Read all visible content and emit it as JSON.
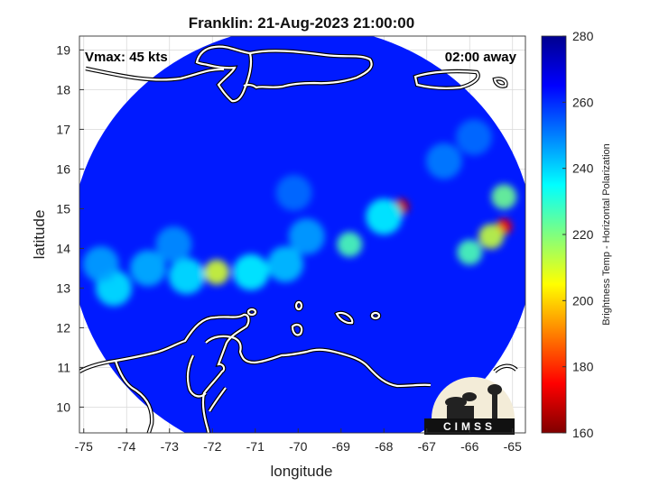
{
  "chart_data": {
    "type": "heatmap",
    "title": "Franklin: 21-Aug-2023 21:00:00",
    "xlabel": "longitude",
    "ylabel": "latitude",
    "xlim": [
      -75.1,
      -64.7
    ],
    "ylim": [
      9.35,
      19.35
    ],
    "xticks": [
      -75,
      -74,
      -73,
      -72,
      -71,
      -70,
      -69,
      -68,
      -67,
      -66,
      -65
    ],
    "yticks": [
      10,
      11,
      12,
      13,
      14,
      15,
      16,
      17,
      18,
      19
    ],
    "grid": true,
    "annotations": {
      "left": "Vmax: 45 kts",
      "right": "02:00 away"
    },
    "colorbar": {
      "label": "Brightness Temp - Horizontal Polarization",
      "range": [
        160,
        280
      ],
      "ticks": [
        160,
        180,
        200,
        220,
        240,
        260,
        280
      ],
      "colormap": "jet"
    },
    "swath": {
      "center_lon": -69.9,
      "center_lat": 14.1,
      "radius_deg": 5.4
    },
    "background_value": 262,
    "features": [
      {
        "lon": -67.6,
        "lat": 15.05,
        "value": 168
      },
      {
        "lon": -65.2,
        "lat": 14.55,
        "value": 174
      },
      {
        "lon": -65.5,
        "lat": 14.3,
        "value": 212
      },
      {
        "lon": -66.0,
        "lat": 13.9,
        "value": 226
      },
      {
        "lon": -65.2,
        "lat": 15.3,
        "value": 222
      },
      {
        "lon": -68.0,
        "lat": 14.8,
        "value": 236
      },
      {
        "lon": -69.8,
        "lat": 14.3,
        "value": 246
      },
      {
        "lon": -70.3,
        "lat": 13.6,
        "value": 242
      },
      {
        "lon": -68.8,
        "lat": 14.1,
        "value": 226
      },
      {
        "lon": -71.9,
        "lat": 13.4,
        "value": 210
      },
      {
        "lon": -72.6,
        "lat": 13.3,
        "value": 238
      },
      {
        "lon": -73.5,
        "lat": 13.5,
        "value": 244
      },
      {
        "lon": -74.3,
        "lat": 13.0,
        "value": 238
      },
      {
        "lon": -74.6,
        "lat": 13.6,
        "value": 246
      },
      {
        "lon": -71.1,
        "lat": 13.4,
        "value": 236
      },
      {
        "lon": -72.9,
        "lat": 14.1,
        "value": 248
      },
      {
        "lon": -70.1,
        "lat": 15.4,
        "value": 252
      },
      {
        "lon": -66.6,
        "lat": 16.2,
        "value": 250
      },
      {
        "lon": -65.9,
        "lat": 16.8,
        "value": 252
      }
    ],
    "logo": {
      "text": "CIMSS"
    }
  }
}
